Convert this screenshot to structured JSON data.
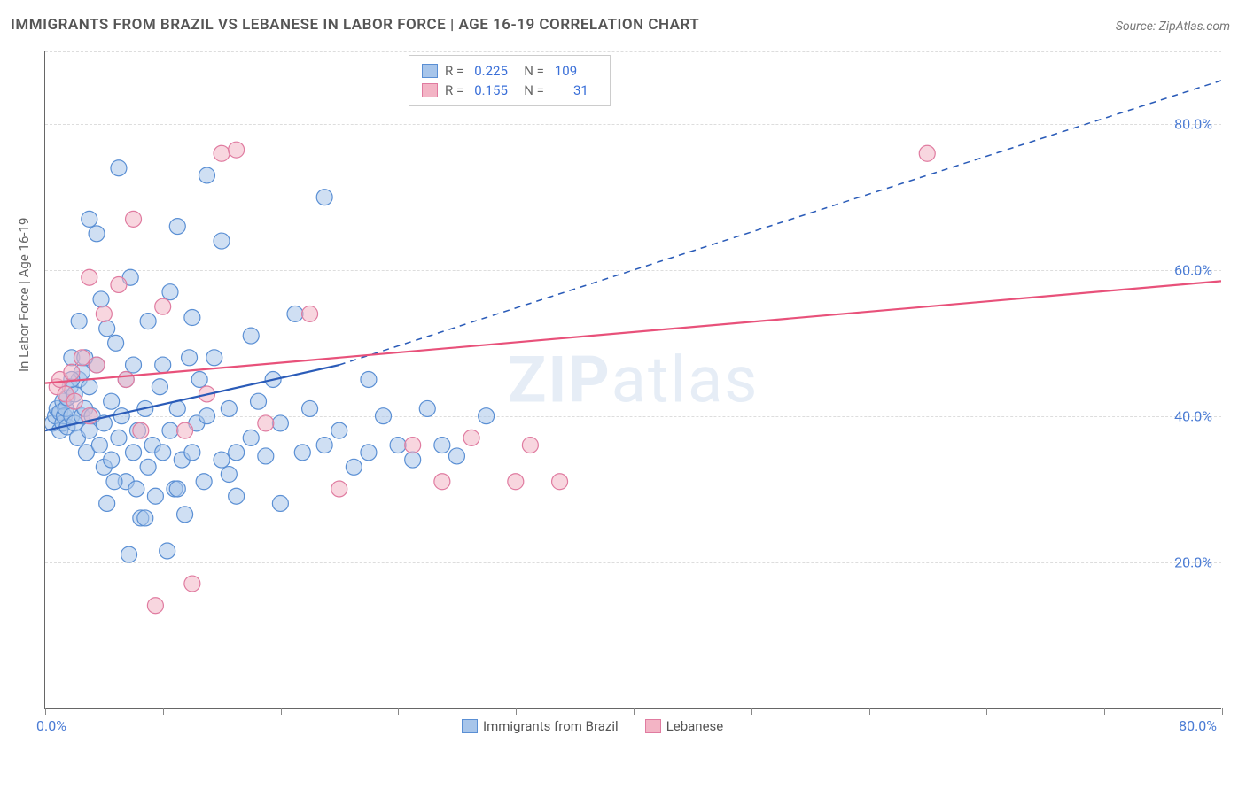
{
  "title": "IMMIGRANTS FROM BRAZIL VS LEBANESE IN LABOR FORCE | AGE 16-19 CORRELATION CHART",
  "source": "Source: ZipAtlas.com",
  "y_axis_label": "In Labor Force | Age 16-19",
  "watermark_bold": "ZIP",
  "watermark_rest": "atlas",
  "chart": {
    "type": "scatter",
    "x_range": [
      0,
      80
    ],
    "y_range": [
      0,
      90
    ],
    "y_ticks": [
      20,
      40,
      60,
      80
    ],
    "y_tick_labels": [
      "20.0%",
      "40.0%",
      "60.0%",
      "80.0%"
    ],
    "x_ticks": [
      0,
      8,
      16,
      24,
      32,
      40,
      48,
      56,
      64,
      72,
      80
    ],
    "x_origin_label": "0.0%",
    "x_end_label": "80.0%",
    "grid_color": "#dddddd",
    "background_color": "#ffffff",
    "axis_color": "#666666",
    "tick_label_color": "#4a7bd4",
    "series": [
      {
        "name": "Immigrants from Brazil",
        "marker_fill": "#a7c5ea",
        "marker_stroke": "#5a8fd4",
        "marker_radius": 9,
        "marker_opacity": 0.55,
        "R": "0.225",
        "N": "109",
        "trend_line": {
          "color": "#2a5bb8",
          "width": 2.2,
          "solid_start": [
            0,
            38
          ],
          "solid_end": [
            20,
            47
          ],
          "dashed_end": [
            80,
            86
          ]
        },
        "points": [
          [
            0.5,
            39
          ],
          [
            0.7,
            40
          ],
          [
            0.8,
            41
          ],
          [
            1.0,
            38
          ],
          [
            1.0,
            40.5
          ],
          [
            1.2,
            39
          ],
          [
            1.2,
            42
          ],
          [
            1.3,
            40
          ],
          [
            1.4,
            41
          ],
          [
            1.5,
            38.5
          ],
          [
            1.5,
            42.5
          ],
          [
            1.7,
            44
          ],
          [
            1.8,
            40
          ],
          [
            1.8,
            48
          ],
          [
            2.0,
            39
          ],
          [
            2.0,
            43
          ],
          [
            2.2,
            37
          ],
          [
            2.3,
            45
          ],
          [
            2.5,
            40
          ],
          [
            2.5,
            46
          ],
          [
            2.7,
            41
          ],
          [
            2.8,
            35
          ],
          [
            3.0,
            38
          ],
          [
            3.0,
            44
          ],
          [
            3.2,
            40
          ],
          [
            3.5,
            65
          ],
          [
            3.5,
            47
          ],
          [
            3.7,
            36
          ],
          [
            4.0,
            39
          ],
          [
            4.0,
            33
          ],
          [
            4.2,
            52
          ],
          [
            4.2,
            28
          ],
          [
            4.5,
            34
          ],
          [
            4.5,
            42
          ],
          [
            4.8,
            50
          ],
          [
            5.0,
            37
          ],
          [
            5.0,
            74
          ],
          [
            5.2,
            40
          ],
          [
            5.5,
            31
          ],
          [
            5.5,
            45
          ],
          [
            5.7,
            21
          ],
          [
            6.0,
            35
          ],
          [
            6.0,
            47
          ],
          [
            6.3,
            38
          ],
          [
            6.5,
            26
          ],
          [
            6.8,
            41
          ],
          [
            7.0,
            33
          ],
          [
            7.0,
            53
          ],
          [
            7.3,
            36
          ],
          [
            7.5,
            29
          ],
          [
            7.8,
            44
          ],
          [
            8.0,
            35
          ],
          [
            8.0,
            47
          ],
          [
            8.3,
            21.5
          ],
          [
            8.5,
            38
          ],
          [
            8.8,
            30
          ],
          [
            9.0,
            66
          ],
          [
            9.0,
            41
          ],
          [
            9.3,
            34
          ],
          [
            9.5,
            26.5
          ],
          [
            9.8,
            48
          ],
          [
            10,
            35
          ],
          [
            10,
            53.5
          ],
          [
            10.3,
            39
          ],
          [
            10.5,
            45
          ],
          [
            10.8,
            31
          ],
          [
            11,
            73
          ],
          [
            11,
            40
          ],
          [
            11.5,
            48
          ],
          [
            12,
            34
          ],
          [
            12,
            64
          ],
          [
            12.5,
            41
          ],
          [
            13,
            35
          ],
          [
            13,
            29
          ],
          [
            14,
            37
          ],
          [
            14,
            51
          ],
          [
            14.5,
            42
          ],
          [
            15,
            34.5
          ],
          [
            15.5,
            45
          ],
          [
            16,
            39
          ],
          [
            16,
            28
          ],
          [
            17,
            54
          ],
          [
            17.5,
            35
          ],
          [
            18,
            41
          ],
          [
            19,
            36
          ],
          [
            19,
            70
          ],
          [
            20,
            38
          ],
          [
            21,
            33
          ],
          [
            22,
            45
          ],
          [
            22,
            35
          ],
          [
            23,
            40
          ],
          [
            24,
            36
          ],
          [
            25,
            34
          ],
          [
            26,
            41
          ],
          [
            27,
            36
          ],
          [
            28,
            34.5
          ],
          [
            30,
            40
          ],
          [
            3.0,
            67
          ],
          [
            5.8,
            59
          ],
          [
            8.5,
            57
          ],
          [
            3.8,
            56
          ],
          [
            2.3,
            53
          ],
          [
            4.7,
            31
          ],
          [
            6.2,
            30
          ],
          [
            12.5,
            32
          ],
          [
            6.8,
            26
          ],
          [
            9.0,
            30
          ],
          [
            1.8,
            45
          ],
          [
            2.7,
            48
          ]
        ]
      },
      {
        "name": "Lebanese",
        "marker_fill": "#f3b4c5",
        "marker_stroke": "#e07ba0",
        "marker_radius": 9,
        "marker_opacity": 0.55,
        "R": "0.155",
        "N": "31",
        "trend_line": {
          "color": "#e8517a",
          "width": 2.2,
          "solid_start": [
            0,
            44.5
          ],
          "solid_end": [
            80,
            58.5
          ],
          "dashed_end": null
        },
        "points": [
          [
            0.8,
            44
          ],
          [
            1.0,
            45
          ],
          [
            1.4,
            43
          ],
          [
            1.8,
            46
          ],
          [
            2.0,
            42
          ],
          [
            2.5,
            48
          ],
          [
            3.0,
            40
          ],
          [
            3.0,
            59
          ],
          [
            3.5,
            47
          ],
          [
            4.0,
            54
          ],
          [
            5.0,
            58
          ],
          [
            5.5,
            45
          ],
          [
            6.0,
            67
          ],
          [
            6.5,
            38
          ],
          [
            7.5,
            14
          ],
          [
            8.0,
            55
          ],
          [
            9.5,
            38
          ],
          [
            10,
            17
          ],
          [
            11,
            43
          ],
          [
            12,
            76
          ],
          [
            13,
            76.5
          ],
          [
            15,
            39
          ],
          [
            18,
            54
          ],
          [
            20,
            30
          ],
          [
            25,
            36
          ],
          [
            27,
            31
          ],
          [
            29,
            37
          ],
          [
            32,
            31
          ],
          [
            33,
            36
          ],
          [
            35,
            31
          ],
          [
            60,
            76
          ]
        ]
      }
    ]
  },
  "legend_bottom": [
    {
      "label": "Immigrants from Brazil",
      "fill": "#a7c5ea",
      "stroke": "#5a8fd4"
    },
    {
      "label": "Lebanese",
      "fill": "#f3b4c5",
      "stroke": "#e07ba0"
    }
  ]
}
